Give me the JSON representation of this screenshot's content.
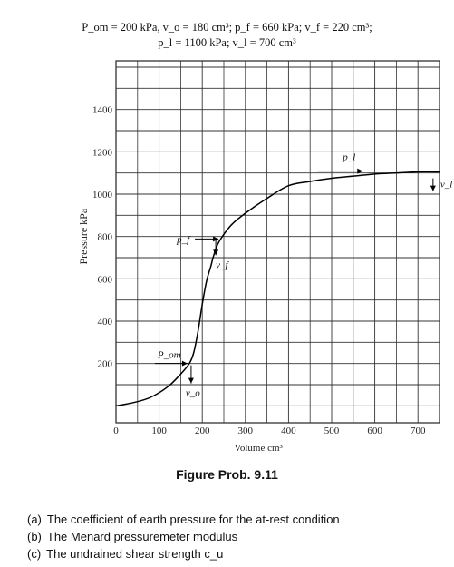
{
  "header": {
    "line1": "P_om = 200 kPa, v_o = 180 cm³; p_f = 660 kPa; v_f = 220 cm³;",
    "line2": "p_l = 1100 kPa; v_l = 700 cm³"
  },
  "chart_data": {
    "type": "line",
    "xlabel": "Volume cm³",
    "ylabel": "Pressure kPa",
    "xlim": [
      0,
      750
    ],
    "ylim": [
      -80,
      1630
    ],
    "x_ticks": [
      "0",
      "100",
      "200",
      "300",
      "400",
      "500",
      "600",
      "700"
    ],
    "x_tick_values": [
      0,
      100,
      200,
      300,
      400,
      500,
      600,
      700
    ],
    "y_ticks": [
      "200",
      "400",
      "600",
      "800",
      "1000",
      "1200",
      "1400"
    ],
    "y_tick_values": [
      200,
      400,
      600,
      800,
      1000,
      1200,
      1400
    ],
    "grid": true,
    "series": [
      {
        "x": [
          0,
          40,
          80,
          120,
          150,
          170,
          180,
          190,
          200,
          210,
          220,
          225,
          235,
          250,
          270,
          300,
          350,
          400,
          450,
          500,
          550,
          600,
          650,
          700,
          750
        ],
        "y": [
          0,
          15,
          40,
          90,
          150,
          200,
          250,
          350,
          480,
          590,
          660,
          700,
          760,
          810,
          860,
          910,
          980,
          1040,
          1060,
          1075,
          1085,
          1095,
          1100,
          1105,
          1105
        ]
      }
    ],
    "annotations": [
      {
        "label": "P_om",
        "x": 170,
        "y": 200
      },
      {
        "label": "v_o",
        "x": 170,
        "y": 200
      },
      {
        "label": "p_f",
        "x": 225,
        "y": 660
      },
      {
        "label": "v_f",
        "x": 225,
        "y": 660
      },
      {
        "label": "p_l",
        "x": 530,
        "y": 1100
      },
      {
        "label": "v_l",
        "x": 735,
        "y": 1100
      }
    ]
  },
  "caption": "Figure Prob. 9.11",
  "questions": [
    {
      "mark": "(a)",
      "text": "The coefficient of earth pressure for the at-rest condition"
    },
    {
      "mark": "(b)",
      "text": "The Menard pressuremeter modulus"
    },
    {
      "mark": "(c)",
      "text": "The undrained shear strength c_u"
    }
  ]
}
